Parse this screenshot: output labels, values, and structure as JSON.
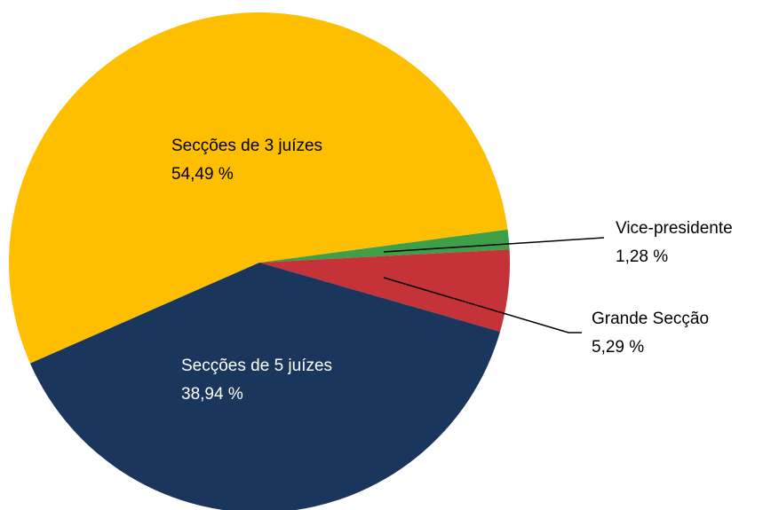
{
  "chart_data": {
    "type": "pie",
    "labels": [
      "Vice-presidente",
      "Grande Secção",
      "Secções de 5 juízes",
      "Secções de 3 juízes"
    ],
    "values": [
      1.28,
      5.29,
      38.94,
      54.49
    ],
    "value_labels": [
      "1,28 %",
      "5,29 %",
      "38,94 %",
      "54,49 %"
    ],
    "colors": [
      "#3f9e48",
      "#c53237",
      "#1a365d",
      "#fdbf00"
    ]
  }
}
